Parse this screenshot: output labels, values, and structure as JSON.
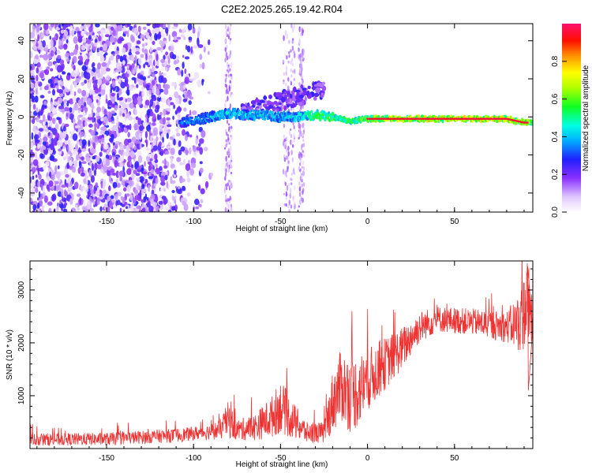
{
  "title": "C2E2.2025.265.19.42.R04",
  "chart_data": [
    {
      "type": "heatmap",
      "xlabel": "Height of straight line (km)",
      "ylabel": "Frequency (Hz)",
      "xlim": [
        -194,
        95
      ],
      "ylim": [
        -50,
        49
      ],
      "xticks": [
        -150,
        -100,
        -50,
        0,
        50
      ],
      "yticks": [
        40,
        20,
        0,
        -20,
        -40
      ],
      "colorbar": {
        "label": "Normalized spectral amplitude",
        "range": [
          0.0,
          1.0
        ],
        "ticks": [
          0.0,
          0.2,
          0.4,
          0.6,
          0.8
        ],
        "tick_labels": [
          "0.0",
          "0.2",
          "0.4",
          "0.6",
          "0.8"
        ]
      },
      "ridge": [
        {
          "x": -105,
          "freq": -3,
          "amp": 0.35
        },
        {
          "x": -90,
          "freq": 0,
          "amp": 0.45
        },
        {
          "x": -80,
          "freq": 2,
          "amp": 0.5
        },
        {
          "x": -70,
          "freq": 1,
          "amp": 0.5
        },
        {
          "x": -60,
          "freq": 1,
          "amp": 0.5
        },
        {
          "x": -50,
          "freq": 0,
          "amp": 0.45
        },
        {
          "x": -40,
          "freq": 0,
          "amp": 0.55
        },
        {
          "x": -30,
          "freq": 1,
          "amp": 0.7
        },
        {
          "x": -20,
          "freq": 0,
          "amp": 0.75
        },
        {
          "x": -10,
          "freq": -2,
          "amp": 0.7
        },
        {
          "x": 0,
          "freq": -1,
          "amp": 0.85
        },
        {
          "x": 10,
          "freq": -1,
          "amp": 0.9
        },
        {
          "x": 20,
          "freq": -1,
          "amp": 0.95
        },
        {
          "x": 40,
          "freq": -1,
          "amp": 1.0
        },
        {
          "x": 60,
          "freq": -1,
          "amp": 1.0
        },
        {
          "x": 80,
          "freq": -1,
          "amp": 1.0
        },
        {
          "x": 90,
          "freq": -3,
          "amp": 0.9
        },
        {
          "x": 95,
          "freq": -3,
          "amp": 0.8
        }
      ]
    },
    {
      "type": "line",
      "xlabel": "Height of straight line (km)",
      "ylabel": "SNR (10 * v/v)",
      "xlim": [
        -194,
        95
      ],
      "ylim": [
        0,
        3550
      ],
      "xticks": [
        -150,
        -100,
        -50,
        0,
        50
      ],
      "yticks": [
        1000,
        2000,
        3000
      ],
      "series": [
        {
          "name": "SNR",
          "color": "#ee3333",
          "envelope": [
            {
              "x": -194,
              "mean": 170,
              "spread": 120
            },
            {
              "x": -150,
              "mean": 180,
              "spread": 120
            },
            {
              "x": -110,
              "mean": 250,
              "spread": 130
            },
            {
              "x": -95,
              "mean": 300,
              "spread": 130
            },
            {
              "x": -85,
              "mean": 350,
              "spread": 180
            },
            {
              "x": -80,
              "mean": 550,
              "spread": 350
            },
            {
              "x": -75,
              "mean": 350,
              "spread": 200
            },
            {
              "x": -65,
              "mean": 400,
              "spread": 250
            },
            {
              "x": -55,
              "mean": 600,
              "spread": 400
            },
            {
              "x": -50,
              "mean": 800,
              "spread": 500
            },
            {
              "x": -45,
              "mean": 600,
              "spread": 400
            },
            {
              "x": -35,
              "mean": 300,
              "spread": 200
            },
            {
              "x": -25,
              "mean": 300,
              "spread": 200
            },
            {
              "x": -20,
              "mean": 900,
              "spread": 600
            },
            {
              "x": -15,
              "mean": 1200,
              "spread": 700
            },
            {
              "x": -10,
              "mean": 1000,
              "spread": 700
            },
            {
              "x": -5,
              "mean": 1100,
              "spread": 700
            },
            {
              "x": 0,
              "mean": 1300,
              "spread": 600
            },
            {
              "x": 10,
              "mean": 1600,
              "spread": 500
            },
            {
              "x": 20,
              "mean": 1900,
              "spread": 400
            },
            {
              "x": 30,
              "mean": 2300,
              "spread": 300
            },
            {
              "x": 40,
              "mean": 2450,
              "spread": 250
            },
            {
              "x": 60,
              "mean": 2400,
              "spread": 250
            },
            {
              "x": 80,
              "mean": 2300,
              "spread": 300
            },
            {
              "x": 88,
              "mean": 2400,
              "spread": 600
            },
            {
              "x": 92,
              "mean": 2800,
              "spread": 900
            },
            {
              "x": 95,
              "mean": 2300,
              "spread": 400
            }
          ]
        }
      ]
    }
  ]
}
